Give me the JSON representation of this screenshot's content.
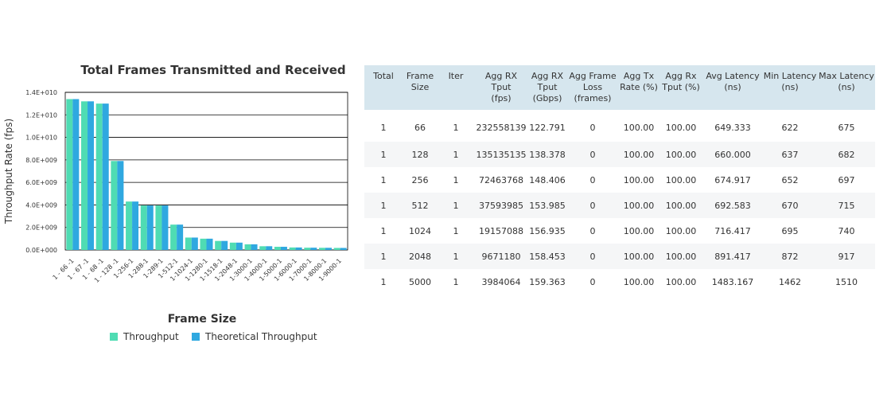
{
  "chart_data": {
    "type": "bar",
    "title": "Total Frames Transmitted and Received",
    "xlabel": "Frame Size",
    "ylabel": "Throughput Rate (fps)",
    "ylim": [
      0,
      14000000000
    ],
    "yticks": [
      "0.0E+000",
      "2.0E+009",
      "4.0E+009",
      "6.0E+009",
      "8.0E+009",
      "1.0E+010",
      "1.2E+010",
      "1.4E+010"
    ],
    "grid": true,
    "legend_position": "bottom",
    "categories": [
      "1 - 66 -1",
      "1 - 67 -1",
      "1 - 68 -1",
      "1 - 128 -1",
      "1-256-1",
      "1-288-1",
      "1-289-1",
      "1-512-1",
      "1-1024-1",
      "1-1280-1",
      "1-1518-1",
      "1-2048-1",
      "1-3000-1",
      "1-4000-1",
      "1-5000-1",
      "1-6000-1",
      "1-7000-1",
      "1-8000-1",
      "1-9000-1"
    ],
    "series": [
      {
        "name": "Throughput",
        "color": "#4fdcb3",
        "values": [
          13400000000,
          13200000000,
          13000000000,
          7900000000,
          4300000000,
          3950000000,
          3950000000,
          2250000000,
          1100000000,
          1000000000,
          800000000,
          650000000,
          500000000,
          330000000,
          280000000,
          220000000,
          200000000,
          190000000,
          180000000
        ]
      },
      {
        "name": "Theoretical Throughput",
        "color": "#2fa8e0",
        "values": [
          13400000000,
          13200000000,
          13000000000,
          7900000000,
          4300000000,
          3950000000,
          3950000000,
          2250000000,
          1100000000,
          1000000000,
          800000000,
          650000000,
          500000000,
          330000000,
          280000000,
          220000000,
          200000000,
          190000000,
          180000000
        ]
      }
    ]
  },
  "table": {
    "headers": [
      [
        "Total"
      ],
      [
        "Frame",
        "Size"
      ],
      [
        "Iter"
      ],
      [
        "Agg RX",
        "Tput",
        "(fps)"
      ],
      [
        "Agg RX",
        "Tput",
        "(Gbps)"
      ],
      [
        "Agg Frame",
        "Loss",
        "(frames)"
      ],
      [
        "Agg Tx",
        "Rate (%)"
      ],
      [
        "Agg Rx",
        "Tput (%)"
      ],
      [
        "Avg Latency",
        "(ns)"
      ],
      [
        "Min Latency",
        "(ns)"
      ],
      [
        "Max Latency",
        "(ns)"
      ]
    ],
    "rows": [
      [
        "1",
        "66",
        "1",
        "232558139",
        "122.791",
        "0",
        "100.00",
        "100.00",
        "649.333",
        "622",
        "675"
      ],
      [
        "1",
        "128",
        "1",
        "135135135",
        "138.378",
        "0",
        "100.00",
        "100.00",
        "660.000",
        "637",
        "682"
      ],
      [
        "1",
        "256",
        "1",
        "72463768",
        "148.406",
        "0",
        "100.00",
        "100.00",
        "674.917",
        "652",
        "697"
      ],
      [
        "1",
        "512",
        "1",
        "37593985",
        "153.985",
        "0",
        "100.00",
        "100.00",
        "692.583",
        "670",
        "715"
      ],
      [
        "1",
        "1024",
        "1",
        "19157088",
        "156.935",
        "0",
        "100.00",
        "100.00",
        "716.417",
        "695",
        "740"
      ],
      [
        "1",
        "2048",
        "1",
        "9671180",
        "158.453",
        "0",
        "100.00",
        "100.00",
        "891.417",
        "872",
        "917"
      ],
      [
        "1",
        "5000",
        "1",
        "3984064",
        "159.363",
        "0",
        "100.00",
        "100.00",
        "1483.167",
        "1462",
        "1510"
      ]
    ]
  }
}
